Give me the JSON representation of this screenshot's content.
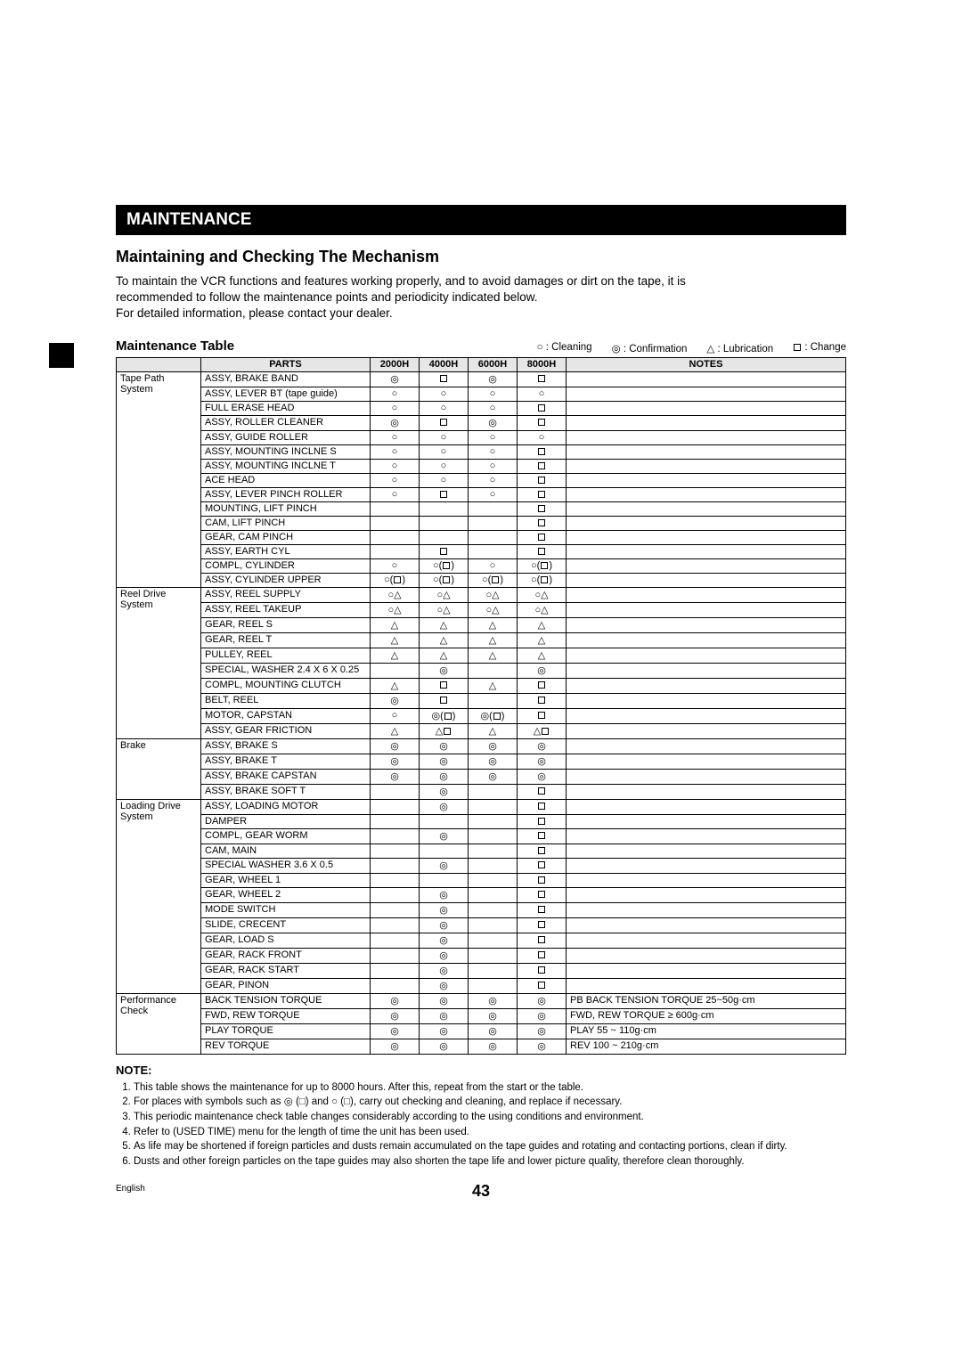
{
  "page": {
    "section_title": "MAINTENANCE",
    "subheading": "Maintaining and Checking The Mechanism",
    "intro_l1": "To maintain the VCR functions and features working properly, and to avoid damages or dirt on the tape, it is",
    "intro_l2": "recommended to follow the maintenance points and periodicity indicated below.",
    "intro_l3": "For detailed information, please contact your dealer.",
    "table_title": "Maintenance Table",
    "legend_clean": " : Cleaning",
    "legend_conf": " : Confirmation",
    "legend_lub": " : Lubrication",
    "legend_change": " : Change",
    "col_parts": "PARTS",
    "col_2000": "2000H",
    "col_4000": "4000H",
    "col_6000": "6000H",
    "col_8000": "8000H",
    "col_notes": "NOTES",
    "note_header": "NOTE:",
    "n1": "This table shows the maintenance for up to 8000 hours. After this, repeat from the start or the table.",
    "n2": "For places with symbols such as ◎ (□) and ○ (□), carry out checking and cleaning, and replace if necessary.",
    "n3": "This periodic maintenance check table changes considerably according to the using conditions and environment.",
    "n4": "Refer to (USED TIME) menu for the length of time the unit has been used.",
    "n5": "As life may be shortened if foreign particles and dusts remain accumulated on the tape guides and rotating and contacting portions, clean if dirty.",
    "n6": "Dusts and other foreign particles on the tape guides may also shorten the tape life and lower picture quality, therefore clean thoroughly.",
    "lang": "English",
    "page_num": "43"
  },
  "symbols": {
    "clean": "○",
    "conf": "◎",
    "lub": "△",
    "change": "□",
    "clean_change": "○(□)",
    "conf_change": "◎(□)",
    "clean_lub": "○△",
    "lub_change": "△□"
  },
  "groups": [
    {
      "cat": "Tape Path System",
      "rows": [
        {
          "p": "ASSY, BRAKE BAND",
          "s": [
            "conf",
            "change",
            "conf",
            "change"
          ],
          "n": ""
        },
        {
          "p": "ASSY, LEVER BT (tape guide)",
          "s": [
            "clean",
            "clean",
            "clean",
            "clean"
          ],
          "n": ""
        },
        {
          "p": "FULL ERASE HEAD",
          "s": [
            "clean",
            "clean",
            "clean",
            "change"
          ],
          "n": ""
        },
        {
          "p": "ASSY, ROLLER CLEANER",
          "s": [
            "conf",
            "change",
            "conf",
            "change"
          ],
          "n": ""
        },
        {
          "p": "ASSY, GUIDE ROLLER",
          "s": [
            "clean",
            "clean",
            "clean",
            "clean"
          ],
          "n": ""
        },
        {
          "p": "ASSY, MOUNTING INCLNE S",
          "s": [
            "clean",
            "clean",
            "clean",
            "change"
          ],
          "n": ""
        },
        {
          "p": "ASSY, MOUNTING INCLNE T",
          "s": [
            "clean",
            "clean",
            "clean",
            "change"
          ],
          "n": ""
        },
        {
          "p": "ACE HEAD",
          "s": [
            "clean",
            "clean",
            "clean",
            "change"
          ],
          "n": ""
        },
        {
          "p": "ASSY, LEVER PINCH ROLLER",
          "s": [
            "clean",
            "change",
            "clean",
            "change"
          ],
          "n": ""
        },
        {
          "p": "MOUNTING, LIFT PINCH",
          "s": [
            "",
            "",
            "",
            "change"
          ],
          "n": ""
        },
        {
          "p": "CAM, LIFT PINCH",
          "s": [
            "",
            "",
            "",
            "change"
          ],
          "n": ""
        },
        {
          "p": "GEAR, CAM PINCH",
          "s": [
            "",
            "",
            "",
            "change"
          ],
          "n": ""
        },
        {
          "p": "ASSY, EARTH CYL",
          "s": [
            "",
            "change",
            "",
            "change"
          ],
          "n": ""
        },
        {
          "p": "COMPL, CYLINDER",
          "s": [
            "clean",
            "clean_change",
            "clean",
            "clean_change"
          ],
          "n": ""
        },
        {
          "p": "ASSY, CYLINDER UPPER",
          "s": [
            "clean_change",
            "clean_change",
            "clean_change",
            "clean_change"
          ],
          "n": ""
        }
      ]
    },
    {
      "cat": "Reel Drive System",
      "rows": [
        {
          "p": "ASSY, REEL SUPPLY",
          "s": [
            "clean_lub",
            "clean_lub",
            "clean_lub",
            "clean_lub"
          ],
          "n": ""
        },
        {
          "p": "ASSY, REEL TAKEUP",
          "s": [
            "clean_lub",
            "clean_lub",
            "clean_lub",
            "clean_lub"
          ],
          "n": ""
        },
        {
          "p": "GEAR, REEL S",
          "s": [
            "lub",
            "lub",
            "lub",
            "lub"
          ],
          "n": ""
        },
        {
          "p": "GEAR, REEL T",
          "s": [
            "lub",
            "lub",
            "lub",
            "lub"
          ],
          "n": ""
        },
        {
          "p": "PULLEY, REEL",
          "s": [
            "lub",
            "lub",
            "lub",
            "lub"
          ],
          "n": ""
        },
        {
          "p": "SPECIAL, WASHER 2.4 X 6 X 0.25",
          "s": [
            "",
            "conf",
            "",
            "conf"
          ],
          "n": ""
        },
        {
          "p": "COMPL, MOUNTING CLUTCH",
          "s": [
            "lub",
            "change",
            "lub",
            "change"
          ],
          "n": ""
        },
        {
          "p": "BELT, REEL",
          "s": [
            "conf",
            "change",
            "",
            "change"
          ],
          "n": ""
        },
        {
          "p": "MOTOR, CAPSTAN",
          "s": [
            "clean",
            "conf_change",
            "conf_change",
            "change"
          ],
          "n": ""
        },
        {
          "p": "ASSY, GEAR FRICTION",
          "s": [
            "lub",
            "lub_change",
            "lub",
            "lub_change"
          ],
          "n": ""
        }
      ]
    },
    {
      "cat": "Brake",
      "rows": [
        {
          "p": "ASSY, BRAKE S",
          "s": [
            "conf",
            "conf",
            "conf",
            "conf"
          ],
          "n": ""
        },
        {
          "p": "ASSY, BRAKE T",
          "s": [
            "conf",
            "conf",
            "conf",
            "conf"
          ],
          "n": ""
        },
        {
          "p": "ASSY, BRAKE CAPSTAN",
          "s": [
            "conf",
            "conf",
            "conf",
            "conf"
          ],
          "n": ""
        },
        {
          "p": "ASSY, BRAKE SOFT T",
          "s": [
            "",
            "conf",
            "",
            "change"
          ],
          "n": ""
        }
      ]
    },
    {
      "cat": "Loading Drive System",
      "rows": [
        {
          "p": "ASSY, LOADING MOTOR",
          "s": [
            "",
            "conf",
            "",
            "change"
          ],
          "n": ""
        },
        {
          "p": "DAMPER",
          "s": [
            "",
            "",
            "",
            "change"
          ],
          "n": ""
        },
        {
          "p": "COMPL, GEAR WORM",
          "s": [
            "",
            "conf",
            "",
            "change"
          ],
          "n": ""
        },
        {
          "p": "CAM, MAIN",
          "s": [
            "",
            "",
            "",
            "change"
          ],
          "n": ""
        },
        {
          "p": "SPECIAL WASHER 3.6 X 0.5",
          "s": [
            "",
            "conf",
            "",
            "change"
          ],
          "n": ""
        },
        {
          "p": "GEAR, WHEEL 1",
          "s": [
            "",
            "",
            "",
            "change"
          ],
          "n": ""
        },
        {
          "p": "GEAR, WHEEL 2",
          "s": [
            "",
            "conf",
            "",
            "change"
          ],
          "n": ""
        },
        {
          "p": "MODE SWITCH",
          "s": [
            "",
            "conf",
            "",
            "change"
          ],
          "n": ""
        },
        {
          "p": "SLIDE, CRECENT",
          "s": [
            "",
            "conf",
            "",
            "change"
          ],
          "n": ""
        },
        {
          "p": "GEAR, LOAD S",
          "s": [
            "",
            "conf",
            "",
            "change"
          ],
          "n": ""
        },
        {
          "p": "GEAR, RACK FRONT",
          "s": [
            "",
            "conf",
            "",
            "change"
          ],
          "n": ""
        },
        {
          "p": "GEAR, RACK START",
          "s": [
            "",
            "conf",
            "",
            "change"
          ],
          "n": ""
        },
        {
          "p": "GEAR, PINON",
          "s": [
            "",
            "conf",
            "",
            "change"
          ],
          "n": ""
        }
      ]
    },
    {
      "cat": "Performance Check",
      "rows": [
        {
          "p": "BACK TENSION TORQUE",
          "s": [
            "conf",
            "conf",
            "conf",
            "conf"
          ],
          "n": "PB BACK TENSION TORQUE 25~50g·cm"
        },
        {
          "p": "FWD, REW TORQUE",
          "s": [
            "conf",
            "conf",
            "conf",
            "conf"
          ],
          "n": "FWD, REW TORQUE ≥ 600g·cm"
        },
        {
          "p": "PLAY TORQUE",
          "s": [
            "conf",
            "conf",
            "conf",
            "conf"
          ],
          "n": "PLAY 55 ~ 110g·cm"
        },
        {
          "p": "REV TORQUE",
          "s": [
            "conf",
            "conf",
            "conf",
            "conf"
          ],
          "n": "REV 100 ~ 210g·cm"
        }
      ]
    }
  ]
}
